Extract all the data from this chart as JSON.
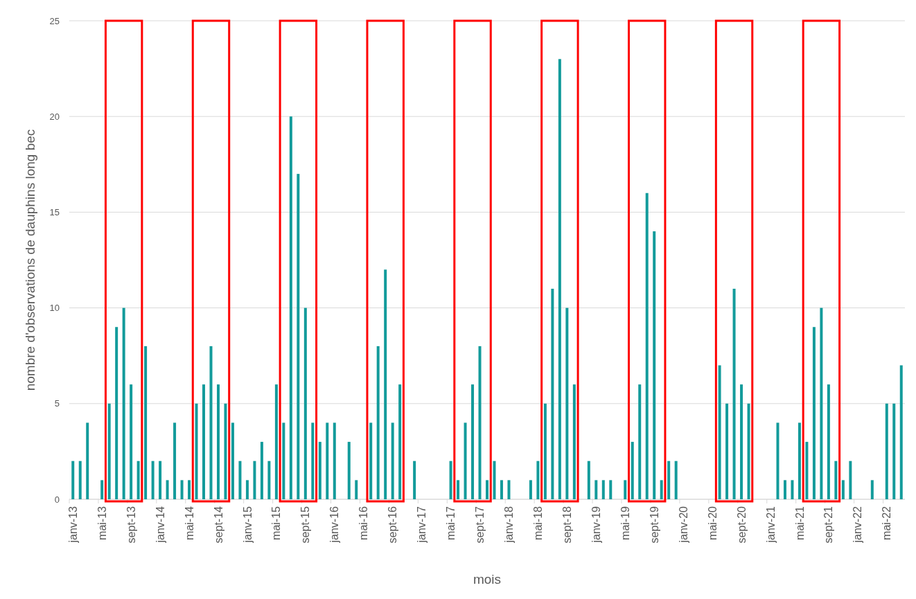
{
  "chart_data": {
    "type": "bar",
    "xlabel": "mois",
    "ylabel": "nombre d'observations de dauphins long bec",
    "categories": [
      "janv-13",
      null,
      null,
      null,
      "mai-13",
      null,
      null,
      null,
      "sept-13",
      null,
      null,
      null,
      "janv-14",
      null,
      null,
      null,
      "mai-14",
      null,
      null,
      null,
      "sept-14",
      null,
      null,
      null,
      "janv-15",
      null,
      null,
      null,
      "mai-15",
      null,
      null,
      null,
      "sept-15",
      null,
      null,
      null,
      "janv-16",
      null,
      null,
      null,
      "mai-16",
      null,
      null,
      null,
      "sept-16",
      null,
      null,
      null,
      "janv-17",
      null,
      null,
      null,
      "mai-17",
      null,
      null,
      null,
      "sept-17",
      null,
      null,
      null,
      "janv-18",
      null,
      null,
      null,
      "mai-18",
      null,
      null,
      null,
      "sept-18",
      null,
      null,
      null,
      "janv-19",
      null,
      null,
      null,
      "mai-19",
      null,
      null,
      null,
      "sept-19",
      null,
      null,
      null,
      "janv-20",
      null,
      null,
      null,
      "mai-20",
      null,
      null,
      null,
      "sept-20",
      null,
      null,
      null,
      "janv-21",
      null,
      null,
      null,
      "mai-21",
      null,
      null,
      null,
      "sept-21",
      null,
      null,
      null,
      "janv-22",
      null,
      null,
      null,
      "mai-22",
      null,
      null
    ],
    "values": [
      2,
      2,
      4,
      0,
      1,
      5,
      9,
      10,
      6,
      2,
      8,
      2,
      2,
      1,
      4,
      1,
      1,
      5,
      6,
      8,
      6,
      5,
      4,
      2,
      1,
      2,
      3,
      2,
      6,
      4,
      20,
      17,
      10,
      4,
      3,
      4,
      4,
      0,
      3,
      1,
      0,
      4,
      8,
      12,
      4,
      6,
      0,
      2,
      0,
      0,
      0,
      0,
      2,
      1,
      4,
      6,
      8,
      1,
      2,
      1,
      1,
      0,
      0,
      1,
      2,
      5,
      11,
      23,
      10,
      6,
      0,
      2,
      1,
      1,
      1,
      0,
      1,
      3,
      6,
      16,
      14,
      1,
      2,
      2,
      0,
      0,
      0,
      0,
      0,
      7,
      5,
      11,
      6,
      5,
      0,
      0,
      0,
      4,
      1,
      1,
      4,
      3,
      9,
      10,
      6,
      2,
      1,
      2,
      0,
      0,
      1,
      0,
      5,
      5,
      7
    ],
    "color": "#139b9b",
    "ylim": [
      0,
      25
    ],
    "yticks": [
      0,
      5,
      10,
      15,
      20,
      25
    ],
    "grid": "y"
  }
}
